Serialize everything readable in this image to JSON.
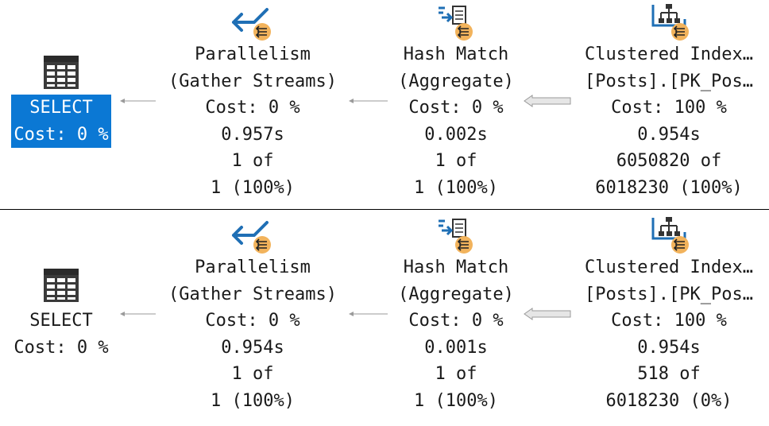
{
  "plans": [
    {
      "select": {
        "name": "SELECT",
        "cost": "Cost: 0 %",
        "selected": true
      },
      "parallelism": {
        "name": "Parallelism",
        "subname": "(Gather Streams)",
        "cost": "Cost: 0 %",
        "time": "0.957s",
        "rows_actual": "1 of",
        "rows_estimated": "1 (100%)"
      },
      "hash_match": {
        "name": "Hash Match",
        "subname": "(Aggregate)",
        "cost": "Cost: 0 %",
        "time": "0.002s",
        "rows_actual": "1 of",
        "rows_estimated": "1 (100%)"
      },
      "clustered_index": {
        "name": "Clustered Index…",
        "subname": "[Posts].[PK_Pos…",
        "cost": "Cost: 100 %",
        "time": "0.954s",
        "rows_actual": "6050820 of",
        "rows_estimated": "6018230 (100%)"
      }
    },
    {
      "select": {
        "name": "SELECT",
        "cost": "Cost: 0 %",
        "selected": false
      },
      "parallelism": {
        "name": "Parallelism",
        "subname": "(Gather Streams)",
        "cost": "Cost: 0 %",
        "time": "0.954s",
        "rows_actual": "1 of",
        "rows_estimated": "1 (100%)"
      },
      "hash_match": {
        "name": "Hash Match",
        "subname": "(Aggregate)",
        "cost": "Cost: 0 %",
        "time": "0.001s",
        "rows_actual": "1 of",
        "rows_estimated": "1 (100%)"
      },
      "clustered_index": {
        "name": "Clustered Index…",
        "subname": "[Posts].[PK_Pos…",
        "cost": "Cost: 100 %",
        "time": "0.954s",
        "rows_actual": "518 of",
        "rows_estimated": "6018230 (0%)"
      }
    }
  ],
  "icons": {
    "select": "select-grid-icon",
    "parallelism": "parallelism-gather-streams-icon",
    "hash_match": "hash-match-icon",
    "clustered_index": "clustered-index-scan-icon",
    "parallel_badge": "parallel-badge-icon"
  },
  "colors": {
    "selection": "#0b78d4",
    "operator_blue": "#1f6fb5",
    "parallel_badge": "#f2b35c",
    "arrow": "#9a9a9a"
  }
}
